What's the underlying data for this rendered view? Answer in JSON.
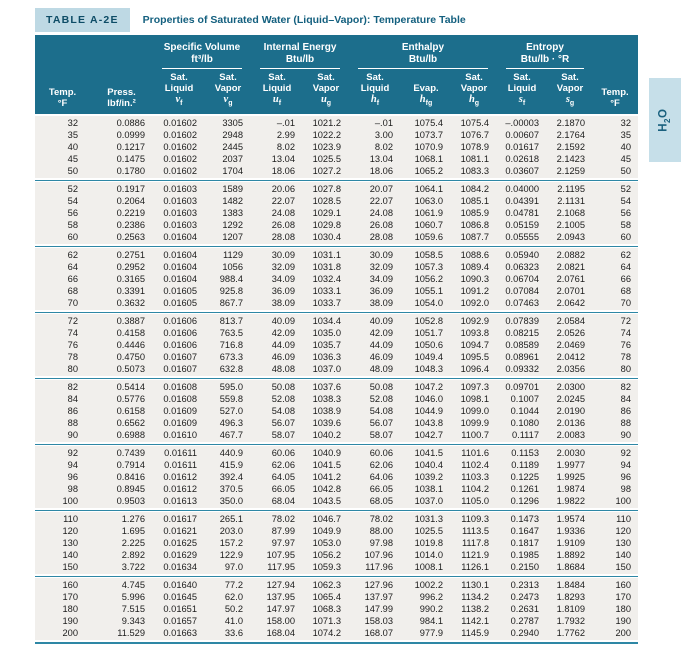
{
  "colors": {
    "header_bg": "#1c6e8c",
    "label_bg": "#bed9e4",
    "accent_line": "#2e87a5",
    "row_bg": "#f1efec",
    "title_text": "#14607f",
    "tab_bg": "#c6dfe9"
  },
  "title_bar": {
    "label": "TABLE A-2E",
    "title": "Properties of Saturated Water (Liquid–Vapor): Temperature Table"
  },
  "side_tab": {
    "pre": "H",
    "sub": "2",
    "post": "O"
  },
  "header": {
    "temp_left": {
      "l1": "Temp.",
      "l2": "°F"
    },
    "press": {
      "l1": "Press.",
      "l2": "lbf/in.²"
    },
    "groups": [
      {
        "name": "Specific Volume",
        "unit": "ft³/lb"
      },
      {
        "name": "Internal Energy",
        "unit": "Btu/lb"
      },
      {
        "name": "Enthalpy",
        "unit": "Btu/lb"
      },
      {
        "name": "Entropy",
        "unit": "Btu/lb · °R"
      }
    ],
    "subcols": [
      {
        "l1": "Sat.",
        "l2": "Liquid",
        "sym": "v",
        "sub": "f"
      },
      {
        "l1": "Sat.",
        "l2": "Vapor",
        "sym": "v",
        "sub": "g"
      },
      {
        "l1": "Sat.",
        "l2": "Liquid",
        "sym": "u",
        "sub": "f"
      },
      {
        "l1": "Sat.",
        "l2": "Vapor",
        "sym": "u",
        "sub": "g"
      },
      {
        "l1": "Sat.",
        "l2": "Liquid",
        "sym": "h",
        "sub": "f"
      },
      {
        "l1": "",
        "l2": "Evap.",
        "sym": "h",
        "sub": "fg"
      },
      {
        "l1": "Sat.",
        "l2": "Vapor",
        "sym": "h",
        "sub": "g"
      },
      {
        "l1": "Sat.",
        "l2": "Liquid",
        "sym": "s",
        "sub": "f"
      },
      {
        "l1": "Sat.",
        "l2": "Vapor",
        "sym": "s",
        "sub": "g"
      }
    ],
    "temp_right": {
      "l1": "Temp.",
      "l2": "°F"
    }
  },
  "table": {
    "row_groups": [
      [
        [
          "32",
          "0.0886",
          "0.01602",
          "3305",
          "–.01",
          "1021.2",
          "–.01",
          "1075.4",
          "1075.4",
          "–.00003",
          "2.1870",
          "32"
        ],
        [
          "35",
          "0.0999",
          "0.01602",
          "2948",
          "2.99",
          "1022.2",
          "3.00",
          "1073.7",
          "1076.7",
          "0.00607",
          "2.1764",
          "35"
        ],
        [
          "40",
          "0.1217",
          "0.01602",
          "2445",
          "8.02",
          "1023.9",
          "8.02",
          "1070.9",
          "1078.9",
          "0.01617",
          "2.1592",
          "40"
        ],
        [
          "45",
          "0.1475",
          "0.01602",
          "2037",
          "13.04",
          "1025.5",
          "13.04",
          "1068.1",
          "1081.1",
          "0.02618",
          "2.1423",
          "45"
        ],
        [
          "50",
          "0.1780",
          "0.01602",
          "1704",
          "18.06",
          "1027.2",
          "18.06",
          "1065.2",
          "1083.3",
          "0.03607",
          "2.1259",
          "50"
        ]
      ],
      [
        [
          "52",
          "0.1917",
          "0.01603",
          "1589",
          "20.06",
          "1027.8",
          "20.07",
          "1064.1",
          "1084.2",
          "0.04000",
          "2.1195",
          "52"
        ],
        [
          "54",
          "0.2064",
          "0.01603",
          "1482",
          "22.07",
          "1028.5",
          "22.07",
          "1063.0",
          "1085.1",
          "0.04391",
          "2.1131",
          "54"
        ],
        [
          "56",
          "0.2219",
          "0.01603",
          "1383",
          "24.08",
          "1029.1",
          "24.08",
          "1061.9",
          "1085.9",
          "0.04781",
          "2.1068",
          "56"
        ],
        [
          "58",
          "0.2386",
          "0.01603",
          "1292",
          "26.08",
          "1029.8",
          "26.08",
          "1060.7",
          "1086.8",
          "0.05159",
          "2.1005",
          "58"
        ],
        [
          "60",
          "0.2563",
          "0.01604",
          "1207",
          "28.08",
          "1030.4",
          "28.08",
          "1059.6",
          "1087.7",
          "0.05555",
          "2.0943",
          "60"
        ]
      ],
      [
        [
          "62",
          "0.2751",
          "0.01604",
          "1129",
          "30.09",
          "1031.1",
          "30.09",
          "1058.5",
          "1088.6",
          "0.05940",
          "2.0882",
          "62"
        ],
        [
          "64",
          "0.2952",
          "0.01604",
          "1056",
          "32.09",
          "1031.8",
          "32.09",
          "1057.3",
          "1089.4",
          "0.06323",
          "2.0821",
          "64"
        ],
        [
          "66",
          "0.3165",
          "0.01604",
          "988.4",
          "34.09",
          "1032.4",
          "34.09",
          "1056.2",
          "1090.3",
          "0.06704",
          "2.0761",
          "66"
        ],
        [
          "68",
          "0.3391",
          "0.01605",
          "925.8",
          "36.09",
          "1033.1",
          "36.09",
          "1055.1",
          "1091.2",
          "0.07084",
          "2.0701",
          "68"
        ],
        [
          "70",
          "0.3632",
          "0.01605",
          "867.7",
          "38.09",
          "1033.7",
          "38.09",
          "1054.0",
          "1092.0",
          "0.07463",
          "2.0642",
          "70"
        ]
      ],
      [
        [
          "72",
          "0.3887",
          "0.01606",
          "813.7",
          "40.09",
          "1034.4",
          "40.09",
          "1052.8",
          "1092.9",
          "0.07839",
          "2.0584",
          "72"
        ],
        [
          "74",
          "0.4158",
          "0.01606",
          "763.5",
          "42.09",
          "1035.0",
          "42.09",
          "1051.7",
          "1093.8",
          "0.08215",
          "2.0526",
          "74"
        ],
        [
          "76",
          "0.4446",
          "0.01606",
          "716.8",
          "44.09",
          "1035.7",
          "44.09",
          "1050.6",
          "1094.7",
          "0.08589",
          "2.0469",
          "76"
        ],
        [
          "78",
          "0.4750",
          "0.01607",
          "673.3",
          "46.09",
          "1036.3",
          "46.09",
          "1049.4",
          "1095.5",
          "0.08961",
          "2.0412",
          "78"
        ],
        [
          "80",
          "0.5073",
          "0.01607",
          "632.8",
          "48.08",
          "1037.0",
          "48.09",
          "1048.3",
          "1096.4",
          "0.09332",
          "2.0356",
          "80"
        ]
      ],
      [
        [
          "82",
          "0.5414",
          "0.01608",
          "595.0",
          "50.08",
          "1037.6",
          "50.08",
          "1047.2",
          "1097.3",
          "0.09701",
          "2.0300",
          "82"
        ],
        [
          "84",
          "0.5776",
          "0.01608",
          "559.8",
          "52.08",
          "1038.3",
          "52.08",
          "1046.0",
          "1098.1",
          "0.1007",
          "2.0245",
          "84"
        ],
        [
          "86",
          "0.6158",
          "0.01609",
          "527.0",
          "54.08",
          "1038.9",
          "54.08",
          "1044.9",
          "1099.0",
          "0.1044",
          "2.0190",
          "86"
        ],
        [
          "88",
          "0.6562",
          "0.01609",
          "496.3",
          "56.07",
          "1039.6",
          "56.07",
          "1043.8",
          "1099.9",
          "0.1080",
          "2.0136",
          "88"
        ],
        [
          "90",
          "0.6988",
          "0.01610",
          "467.7",
          "58.07",
          "1040.2",
          "58.07",
          "1042.7",
          "1100.7",
          "0.1117",
          "2.0083",
          "90"
        ]
      ],
      [
        [
          "92",
          "0.7439",
          "0.01611",
          "440.9",
          "60.06",
          "1040.9",
          "60.06",
          "1041.5",
          "1101.6",
          "0.1153",
          "2.0030",
          "92"
        ],
        [
          "94",
          "0.7914",
          "0.01611",
          "415.9",
          "62.06",
          "1041.5",
          "62.06",
          "1040.4",
          "1102.4",
          "0.1189",
          "1.9977",
          "94"
        ],
        [
          "96",
          "0.8416",
          "0.01612",
          "392.4",
          "64.05",
          "1041.2",
          "64.06",
          "1039.2",
          "1103.3",
          "0.1225",
          "1.9925",
          "96"
        ],
        [
          "98",
          "0.8945",
          "0.01612",
          "370.5",
          "66.05",
          "1042.8",
          "66.05",
          "1038.1",
          "1104.2",
          "0.1261",
          "1.9874",
          "98"
        ],
        [
          "100",
          "0.9503",
          "0.01613",
          "350.0",
          "68.04",
          "1043.5",
          "68.05",
          "1037.0",
          "1105.0",
          "0.1296",
          "1.9822",
          "100"
        ]
      ],
      [
        [
          "110",
          "1.276",
          "0.01617",
          "265.1",
          "78.02",
          "1046.7",
          "78.02",
          "1031.3",
          "1109.3",
          "0.1473",
          "1.9574",
          "110"
        ],
        [
          "120",
          "1.695",
          "0.01621",
          "203.0",
          "87.99",
          "1049.9",
          "88.00",
          "1025.5",
          "1113.5",
          "0.1647",
          "1.9336",
          "120"
        ],
        [
          "130",
          "2.225",
          "0.01625",
          "157.2",
          "97.97",
          "1053.0",
          "97.98",
          "1019.8",
          "1117.8",
          "0.1817",
          "1.9109",
          "130"
        ],
        [
          "140",
          "2.892",
          "0.01629",
          "122.9",
          "107.95",
          "1056.2",
          "107.96",
          "1014.0",
          "1121.9",
          "0.1985",
          "1.8892",
          "140"
        ],
        [
          "150",
          "3.722",
          "0.01634",
          "97.0",
          "117.95",
          "1059.3",
          "117.96",
          "1008.1",
          "1126.1",
          "0.2150",
          "1.8684",
          "150"
        ]
      ],
      [
        [
          "160",
          "4.745",
          "0.01640",
          "77.2",
          "127.94",
          "1062.3",
          "127.96",
          "1002.2",
          "1130.1",
          "0.2313",
          "1.8484",
          "160"
        ],
        [
          "170",
          "5.996",
          "0.01645",
          "62.0",
          "137.95",
          "1065.4",
          "137.97",
          "996.2",
          "1134.2",
          "0.2473",
          "1.8293",
          "170"
        ],
        [
          "180",
          "7.515",
          "0.01651",
          "50.2",
          "147.97",
          "1068.3",
          "147.99",
          "990.2",
          "1138.2",
          "0.2631",
          "1.8109",
          "180"
        ],
        [
          "190",
          "9.343",
          "0.01657",
          "41.0",
          "158.00",
          "1071.3",
          "158.03",
          "984.1",
          "1142.1",
          "0.2787",
          "1.7932",
          "190"
        ],
        [
          "200",
          "11.529",
          "0.01663",
          "33.6",
          "168.04",
          "1074.2",
          "168.07",
          "977.9",
          "1145.9",
          "0.2940",
          "1.7762",
          "200"
        ]
      ]
    ]
  }
}
